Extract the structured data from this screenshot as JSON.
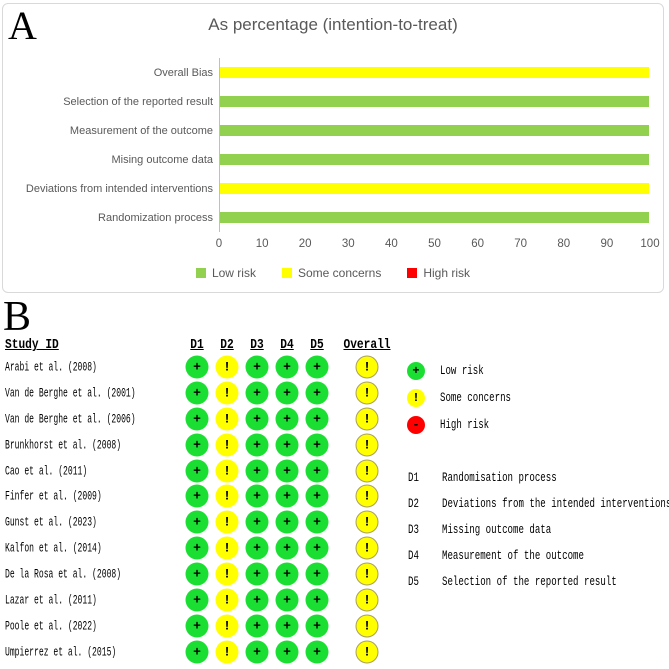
{
  "figure": {
    "panel_a_label": "A",
    "panel_b_label": "B"
  },
  "chart_data": [
    {
      "type": "bar",
      "orientation": "horizontal",
      "title": "As percentage (intention-to-treat)",
      "categories": [
        "Overall Bias",
        "Selection of the reported result",
        "Measurement of the outcome",
        "Mising outcome data",
        "Deviations from intended interventions",
        "Randomization process"
      ],
      "values": [
        100,
        100,
        100,
        100,
        100,
        100
      ],
      "bar_risk": [
        "some_concerns",
        "low_risk",
        "low_risk",
        "low_risk",
        "some_concerns",
        "low_risk"
      ],
      "risk_colors": {
        "low_risk": "#92D050",
        "some_concerns": "#FFFF00",
        "high_risk": "#FF0000"
      },
      "xlim": [
        0,
        100
      ],
      "xticks": [
        "0",
        "10",
        "20",
        "30",
        "40",
        "50",
        "60",
        "70",
        "80",
        "90",
        "100"
      ],
      "grid": false,
      "legend_position": "bottom",
      "legend": [
        {
          "key": "low_risk",
          "label": "Low risk"
        },
        {
          "key": "some_concerns",
          "label": "Some concerns"
        },
        {
          "key": "high_risk",
          "label": "High risk"
        }
      ]
    },
    {
      "type": "table",
      "name": "risk-of-bias-traffic-light-plot",
      "columns": [
        "Study ID",
        "D1",
        "D2",
        "D3",
        "D4",
        "D5",
        "Overall"
      ],
      "judgment_symbols": {
        "low_risk": "+",
        "some_concerns": "!",
        "high_risk": "-"
      },
      "judgment_colors": {
        "low_risk": "#1ADE32",
        "some_concerns": "#FFFF00",
        "high_risk": "#FF0000"
      },
      "rows": [
        {
          "study": "Arabi et al. (2008)",
          "judgments": [
            "low_risk",
            "some_concerns",
            "low_risk",
            "low_risk",
            "low_risk",
            "some_concerns"
          ]
        },
        {
          "study": "Van de Berghe et al. (2001)",
          "judgments": [
            "low_risk",
            "some_concerns",
            "low_risk",
            "low_risk",
            "low_risk",
            "some_concerns"
          ]
        },
        {
          "study": "Van de Berghe et al. (2006)",
          "judgments": [
            "low_risk",
            "some_concerns",
            "low_risk",
            "low_risk",
            "low_risk",
            "some_concerns"
          ]
        },
        {
          "study": "Brunkhorst et al. (2008)",
          "judgments": [
            "low_risk",
            "some_concerns",
            "low_risk",
            "low_risk",
            "low_risk",
            "some_concerns"
          ]
        },
        {
          "study": "Cao et al. (2011)",
          "judgments": [
            "low_risk",
            "some_concerns",
            "low_risk",
            "low_risk",
            "low_risk",
            "some_concerns"
          ]
        },
        {
          "study": "Finfer et al. (2009)",
          "judgments": [
            "low_risk",
            "some_concerns",
            "low_risk",
            "low_risk",
            "low_risk",
            "some_concerns"
          ]
        },
        {
          "study": "Gunst et al. (2023)",
          "judgments": [
            "low_risk",
            "some_concerns",
            "low_risk",
            "low_risk",
            "low_risk",
            "some_concerns"
          ]
        },
        {
          "study": "Kalfon et al. (2014)",
          "judgments": [
            "low_risk",
            "some_concerns",
            "low_risk",
            "low_risk",
            "low_risk",
            "some_concerns"
          ]
        },
        {
          "study": "De la Rosa et al. (2008)",
          "judgments": [
            "low_risk",
            "some_concerns",
            "low_risk",
            "low_risk",
            "low_risk",
            "some_concerns"
          ]
        },
        {
          "study": "Lazar et al. (2011)",
          "judgments": [
            "low_risk",
            "some_concerns",
            "low_risk",
            "low_risk",
            "low_risk",
            "some_concerns"
          ]
        },
        {
          "study": "Poole et al. (2022)",
          "judgments": [
            "low_risk",
            "some_concerns",
            "low_risk",
            "low_risk",
            "low_risk",
            "some_concerns"
          ]
        },
        {
          "study": "Umpierrez et al. (2015)",
          "judgments": [
            "low_risk",
            "some_concerns",
            "low_risk",
            "low_risk",
            "low_risk",
            "some_concerns"
          ]
        }
      ],
      "legend": [
        {
          "key": "low_risk",
          "label": "Low risk"
        },
        {
          "key": "some_concerns",
          "label": "Some concerns"
        },
        {
          "key": "high_risk",
          "label": "High risk"
        }
      ],
      "domain_definitions": [
        {
          "id": "D1",
          "text": "Randomisation process"
        },
        {
          "id": "D2",
          "text": "Deviations from the intended interventions"
        },
        {
          "id": "D3",
          "text": "Missing outcome data"
        },
        {
          "id": "D4",
          "text": "Measurement of the outcome"
        },
        {
          "id": "D5",
          "text": "Selection of the reported result"
        }
      ]
    }
  ]
}
